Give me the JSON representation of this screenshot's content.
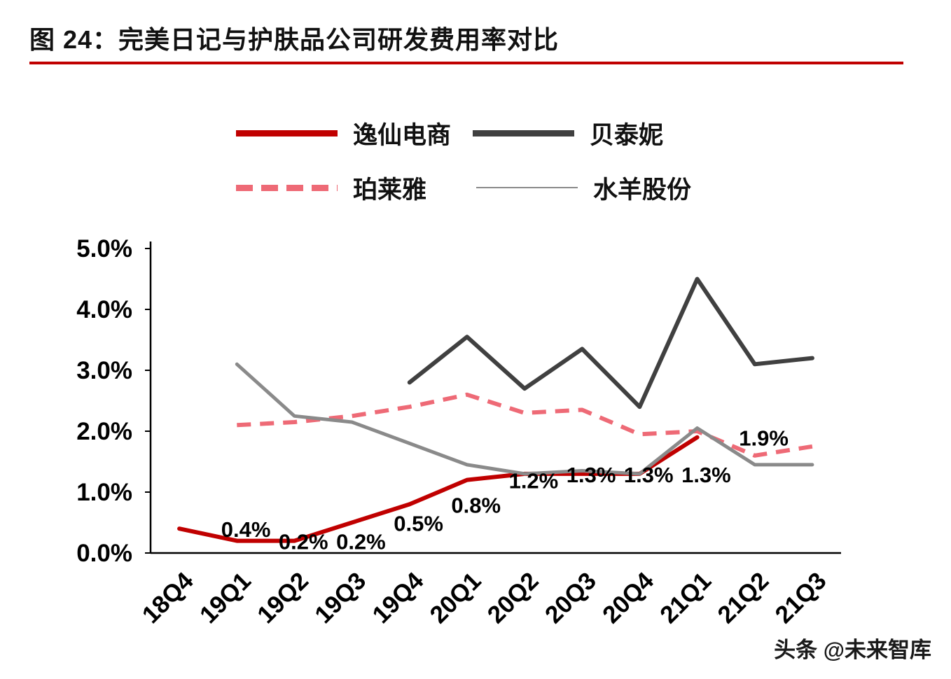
{
  "page": {
    "title": "图 24：完美日记与护肤品公司研发费用率对比",
    "watermark": "头条 @未来智库",
    "accent_color": "#c00000",
    "background_color": "#ffffff"
  },
  "legend": [
    {
      "label": "逸仙电商",
      "color": "#c00000",
      "style": "solid-thick"
    },
    {
      "label": "贝泰妮",
      "color": "#404040",
      "style": "solid-thick"
    },
    {
      "label": "珀莱雅",
      "color": "#ee6a76",
      "style": "dashed-thick"
    },
    {
      "label": "水羊股份",
      "color": "#8a8a8a",
      "style": "solid-thin"
    }
  ],
  "chart_data": {
    "type": "line",
    "title": "完美日记与护肤品公司研发费用率对比",
    "xlabel": "",
    "ylabel": "",
    "grid": false,
    "legend_position": "top",
    "ylim": [
      0,
      5
    ],
    "y_ticks": [
      "0.0%",
      "1.0%",
      "2.0%",
      "3.0%",
      "4.0%",
      "5.0%"
    ],
    "categories": [
      "18Q4",
      "19Q1",
      "19Q2",
      "19Q3",
      "19Q4",
      "20Q1",
      "20Q2",
      "20Q3",
      "20Q4",
      "21Q1",
      "21Q2",
      "21Q3"
    ],
    "series": [
      {
        "name": "逸仙电商",
        "color": "#c00000",
        "width": 6,
        "dash": null,
        "values": [
          0.4,
          0.2,
          0.2,
          0.5,
          0.8,
          1.2,
          1.3,
          1.3,
          1.3,
          1.9,
          null,
          null
        ],
        "labels": [
          "0.4%",
          "0.2%",
          "0.2%",
          "0.5%",
          "0.8%",
          "1.2%",
          "1.3%",
          "1.3%",
          "1.3%",
          "1.9%",
          "",
          ""
        ]
      },
      {
        "name": "贝泰妮",
        "color": "#404040",
        "width": 6,
        "dash": null,
        "values": [
          null,
          null,
          null,
          null,
          2.8,
          3.55,
          2.7,
          3.35,
          2.4,
          4.5,
          3.1,
          3.2
        ]
      },
      {
        "name": "珀莱雅",
        "color": "#ee6a76",
        "width": 6,
        "dash": "20 13",
        "values": [
          null,
          2.1,
          2.15,
          2.25,
          2.4,
          2.6,
          2.3,
          2.35,
          1.95,
          2.0,
          1.6,
          1.75
        ]
      },
      {
        "name": "水羊股份",
        "color": "#8a8a8a",
        "width": 5,
        "dash": null,
        "values": [
          null,
          3.1,
          2.25,
          2.15,
          1.8,
          1.45,
          1.3,
          1.35,
          1.3,
          2.05,
          1.45,
          1.45
        ]
      }
    ]
  }
}
